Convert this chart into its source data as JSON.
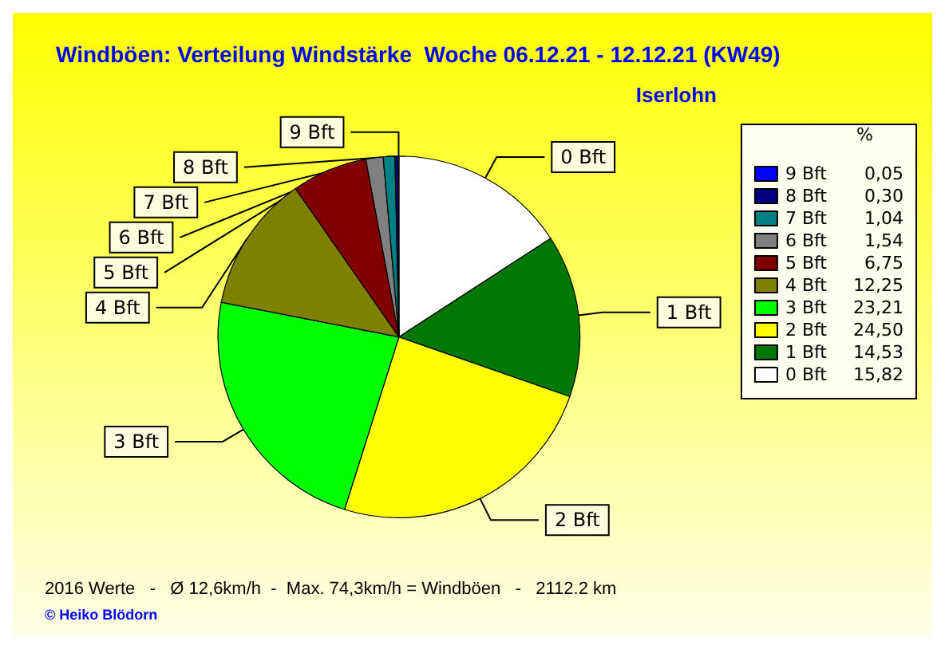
{
  "chart_data": {
    "type": "pie",
    "title": "Windböen: Verteilung Windstärke  Woche 06.12.21 - 12.12.21 (KW49)",
    "subtitle": "Iserlohn",
    "legend_title": "%",
    "categories": [
      "0 Bft",
      "1 Bft",
      "2 Bft",
      "3 Bft",
      "4 Bft",
      "5 Bft",
      "6 Bft",
      "7 Bft",
      "8 Bft",
      "9 Bft"
    ],
    "values": [
      15.82,
      14.53,
      24.5,
      23.21,
      12.25,
      6.75,
      1.54,
      1.04,
      0.3,
      0.05
    ],
    "value_labels": [
      "15,82",
      "14,53",
      "24,50",
      "23,21",
      "12,25",
      "6,75",
      "1,54",
      "1,04",
      "0,30",
      "0,05"
    ],
    "colors": [
      "#ffffff",
      "#007800",
      "#ffff00",
      "#00ff00",
      "#808000",
      "#800000",
      "#808080",
      "#008080",
      "#000080",
      "#0000ff"
    ],
    "legend": "top right",
    "annotations": [
      "2016 Werte   -   Ø 12,6km/h  -  Max. 74,3km/h = Windböen   -   2112.2 km",
      "© Heiko Blödorn"
    ]
  }
}
